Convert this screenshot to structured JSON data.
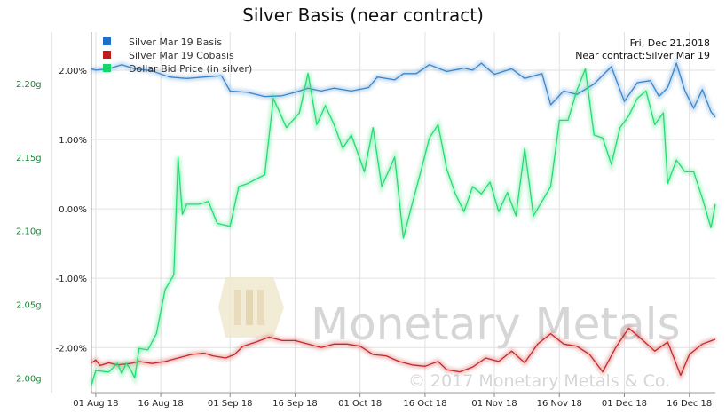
{
  "chart_data": {
    "type": "line",
    "title": "Silver Basis (near contract)",
    "date_note": "Fri, Dec 21,2018",
    "contract_note": "Near contract:Silver Mar 19",
    "watermark": {
      "brand": "Monetary Metals",
      "copyright": "© 2017 Monetary Metals & Co."
    },
    "x_ticks": [
      "01 Aug 18",
      "16 Aug 18",
      "01 Sep 18",
      "16 Sep 18",
      "01 Oct 18",
      "16 Oct 18",
      "01 Nov 18",
      "16 Nov 18",
      "01 Dec 18",
      "16 Dec 18"
    ],
    "x_tick_days": [
      1,
      16,
      32,
      47,
      62,
      77,
      93,
      108,
      123,
      138
    ],
    "x_range_days": [
      0,
      144
    ],
    "y_left": {
      "ticks": [
        "2.00%",
        "1.00%",
        "0.00%",
        "-1.00%",
        "-2.00%"
      ],
      "tick_values": [
        2,
        1,
        0,
        -1,
        -2
      ],
      "range": [
        -2.65,
        2.55
      ]
    },
    "y_right": {
      "ticks": [
        "2.20g",
        "2.15g",
        "2.10g",
        "2.05g",
        "2.00g"
      ],
      "tick_values": [
        2.2,
        2.15,
        2.1,
        2.05,
        2.0
      ],
      "range": [
        1.99,
        2.235
      ],
      "color": "#1a8a3a"
    },
    "legend": {
      "placement": "top-left"
    },
    "series": [
      {
        "name": "Silver Mar 19 Basis",
        "color": "#3a86cc",
        "axis": "left",
        "points": [
          [
            0,
            2.02
          ],
          [
            1,
            2.0
          ],
          [
            4,
            2.02
          ],
          [
            7,
            2.08
          ],
          [
            10,
            2.02
          ],
          [
            14,
            1.99
          ],
          [
            18,
            1.9
          ],
          [
            22,
            1.88
          ],
          [
            26,
            1.9
          ],
          [
            30,
            1.92
          ],
          [
            32,
            1.7
          ],
          [
            36,
            1.68
          ],
          [
            40,
            1.62
          ],
          [
            44,
            1.63
          ],
          [
            47,
            1.68
          ],
          [
            50,
            1.74
          ],
          [
            53,
            1.7
          ],
          [
            56,
            1.74
          ],
          [
            60,
            1.7
          ],
          [
            64,
            1.75
          ],
          [
            66,
            1.9
          ],
          [
            70,
            1.86
          ],
          [
            72,
            1.95
          ],
          [
            75,
            1.95
          ],
          [
            78,
            2.08
          ],
          [
            82,
            1.98
          ],
          [
            86,
            2.03
          ],
          [
            88,
            2.0
          ],
          [
            90,
            2.1
          ],
          [
            93,
            1.94
          ],
          [
            97,
            2.02
          ],
          [
            100,
            1.88
          ],
          [
            104,
            1.95
          ],
          [
            106,
            1.5
          ],
          [
            109,
            1.7
          ],
          [
            112,
            1.65
          ],
          [
            116,
            1.8
          ],
          [
            120,
            2.05
          ],
          [
            123,
            1.55
          ],
          [
            126,
            1.82
          ],
          [
            129,
            1.85
          ],
          [
            131,
            1.62
          ],
          [
            133,
            1.75
          ],
          [
            135,
            2.1
          ],
          [
            137,
            1.7
          ],
          [
            139,
            1.45
          ],
          [
            141,
            1.72
          ],
          [
            143,
            1.4
          ],
          [
            144,
            1.32
          ]
        ]
      },
      {
        "name": "Silver Mar 19 Cobasis",
        "color": "#c82828",
        "axis": "left",
        "points": [
          [
            0,
            -2.22
          ],
          [
            1,
            -2.18
          ],
          [
            2,
            -2.26
          ],
          [
            4,
            -2.22
          ],
          [
            6,
            -2.25
          ],
          [
            9,
            -2.23
          ],
          [
            11,
            -2.2
          ],
          [
            14,
            -2.23
          ],
          [
            17,
            -2.2
          ],
          [
            20,
            -2.15
          ],
          [
            23,
            -2.1
          ],
          [
            26,
            -2.08
          ],
          [
            28,
            -2.12
          ],
          [
            31,
            -2.15
          ],
          [
            33,
            -2.1
          ],
          [
            35,
            -1.98
          ],
          [
            38,
            -1.92
          ],
          [
            41,
            -1.85
          ],
          [
            44,
            -1.9
          ],
          [
            47,
            -1.9
          ],
          [
            50,
            -1.95
          ],
          [
            53,
            -2.0
          ],
          [
            56,
            -1.95
          ],
          [
            59,
            -1.95
          ],
          [
            62,
            -1.98
          ],
          [
            65,
            -2.1
          ],
          [
            68,
            -2.12
          ],
          [
            71,
            -2.2
          ],
          [
            74,
            -2.25
          ],
          [
            77,
            -2.27
          ],
          [
            80,
            -2.2
          ],
          [
            82,
            -2.32
          ],
          [
            85,
            -2.35
          ],
          [
            88,
            -2.28
          ],
          [
            91,
            -2.15
          ],
          [
            94,
            -2.2
          ],
          [
            97,
            -2.05
          ],
          [
            100,
            -2.22
          ],
          [
            103,
            -1.95
          ],
          [
            106,
            -1.8
          ],
          [
            109,
            -1.95
          ],
          [
            112,
            -1.98
          ],
          [
            115,
            -2.1
          ],
          [
            118,
            -2.35
          ],
          [
            121,
            -2.0
          ],
          [
            124,
            -1.72
          ],
          [
            127,
            -1.88
          ],
          [
            130,
            -2.05
          ],
          [
            133,
            -1.92
          ],
          [
            136,
            -2.4
          ],
          [
            138,
            -2.1
          ],
          [
            141,
            -1.95
          ],
          [
            144,
            -1.88
          ]
        ]
      },
      {
        "name": "Dollar Bid Price (in silver)",
        "color": "#22dd70",
        "axis": "right",
        "points": [
          [
            0,
            1.995
          ],
          [
            1,
            2.005
          ],
          [
            4,
            2.004
          ],
          [
            6,
            2.01
          ],
          [
            7,
            2.003
          ],
          [
            8,
            2.01
          ],
          [
            9,
            2.006
          ],
          [
            10,
            2.0
          ],
          [
            11,
            2.02
          ],
          [
            13,
            2.019
          ],
          [
            15,
            2.03
          ],
          [
            17,
            2.06
          ],
          [
            19,
            2.07
          ],
          [
            20,
            2.15
          ],
          [
            21,
            2.111
          ],
          [
            22,
            2.118
          ],
          [
            25,
            2.118
          ],
          [
            27,
            2.12
          ],
          [
            29,
            2.105
          ],
          [
            32,
            2.103
          ],
          [
            34,
            2.13
          ],
          [
            36,
            2.132
          ],
          [
            40,
            2.138
          ],
          [
            42,
            2.19
          ],
          [
            45,
            2.17
          ],
          [
            48,
            2.18
          ],
          [
            50,
            2.207
          ],
          [
            52,
            2.172
          ],
          [
            54,
            2.185
          ],
          [
            56,
            2.172
          ],
          [
            58,
            2.156
          ],
          [
            60,
            2.165
          ],
          [
            63,
            2.14
          ],
          [
            65,
            2.17
          ],
          [
            67,
            2.13
          ],
          [
            70,
            2.15
          ],
          [
            72,
            2.095
          ],
          [
            74,
            2.118
          ],
          [
            76,
            2.14
          ],
          [
            78,
            2.163
          ],
          [
            80,
            2.172
          ],
          [
            82,
            2.142
          ],
          [
            84,
            2.125
          ],
          [
            86,
            2.113
          ],
          [
            88,
            2.13
          ],
          [
            90,
            2.125
          ],
          [
            92,
            2.133
          ],
          [
            94,
            2.113
          ],
          [
            96,
            2.126
          ],
          [
            98,
            2.11
          ],
          [
            100,
            2.156
          ],
          [
            102,
            2.11
          ],
          [
            104,
            2.12
          ],
          [
            106,
            2.13
          ],
          [
            108,
            2.175
          ],
          [
            110,
            2.175
          ],
          [
            112,
            2.195
          ],
          [
            114,
            2.21
          ],
          [
            116,
            2.165
          ],
          [
            118,
            2.163
          ],
          [
            120,
            2.145
          ],
          [
            122,
            2.17
          ],
          [
            124,
            2.178
          ],
          [
            126,
            2.19
          ],
          [
            128,
            2.195
          ],
          [
            130,
            2.172
          ],
          [
            132,
            2.18
          ],
          [
            133,
            2.132
          ],
          [
            135,
            2.148
          ],
          [
            137,
            2.14
          ],
          [
            139,
            2.14
          ],
          [
            141,
            2.122
          ],
          [
            143,
            2.102
          ],
          [
            144,
            2.118
          ]
        ]
      }
    ]
  }
}
